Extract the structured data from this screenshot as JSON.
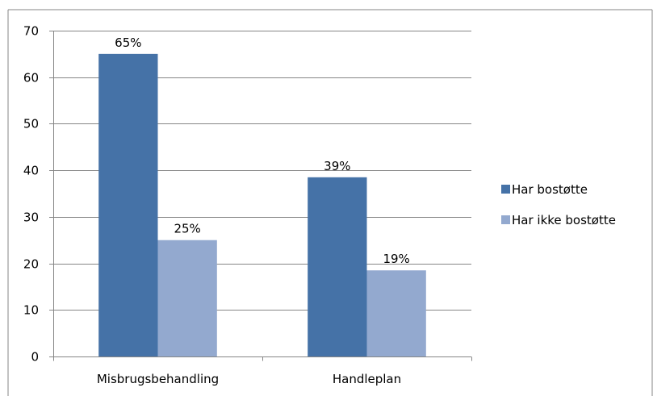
{
  "chart_data": {
    "type": "bar",
    "categories": [
      "Misbrugsbehandling",
      "Handleplan"
    ],
    "series": [
      {
        "name": "Har bostøtte",
        "values": [
          65,
          38.5
        ],
        "data_labels": [
          "65%",
          "39%"
        ],
        "color": "#4572A7"
      },
      {
        "name": "Har ikke bostøtte",
        "values": [
          25,
          18.5
        ],
        "data_labels": [
          "25%",
          "19%"
        ],
        "color": "#93A9CF"
      }
    ],
    "title": "",
    "xlabel": "",
    "ylabel": "",
    "ylim": [
      0,
      70
    ],
    "yticks": [
      0,
      10,
      20,
      30,
      40,
      50,
      60,
      70
    ],
    "grid": true,
    "legend_position": "right"
  },
  "colors": {
    "gridline": "#868686",
    "axis": "#868686",
    "frame": "#868686"
  }
}
